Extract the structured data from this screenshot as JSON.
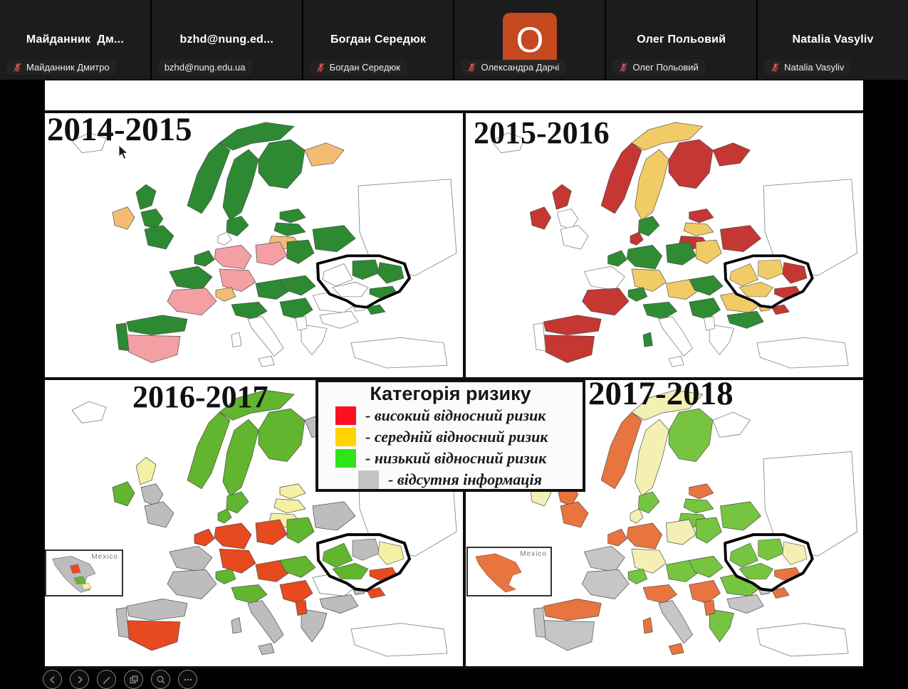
{
  "meeting": {
    "participants": [
      {
        "tile_name": "Майданник  Дм...",
        "chip_label": "Майданник Дмитро",
        "muted": true,
        "avatar": null
      },
      {
        "tile_name": "bzhd@nung.ed...",
        "chip_label": "bzhd@nung.edu.ua",
        "muted": false,
        "avatar": null
      },
      {
        "tile_name": "Богдан Середюк",
        "chip_label": "Богдан Середюк",
        "muted": true,
        "avatar": null
      },
      {
        "tile_name": "",
        "chip_label": "Олександра Дарчі",
        "muted": true,
        "avatar": {
          "initial": "O",
          "color": "#C5481F"
        }
      },
      {
        "tile_name": "Олег Польовий",
        "chip_label": "Олег Польовий",
        "muted": true,
        "avatar": null
      },
      {
        "tile_name": "Natalia Vasyliv",
        "chip_label": "Natalia Vasyliv",
        "muted": true,
        "avatar": null
      }
    ],
    "muted_mic_color": "#E04B59"
  },
  "slide": {
    "legend": {
      "title": "Категорія ризику",
      "items": [
        {
          "color": "#FB1020",
          "label": "- високий відносний ризик"
        },
        {
          "color": "#FFD400",
          "label": "- середній відносний ризик"
        },
        {
          "color": "#2EE415",
          "label": "- низький відносний ризик"
        },
        {
          "color": "#C4C4C4",
          "label": "- відсутня інформація"
        }
      ]
    },
    "maps": [
      {
        "title": "2014-2015",
        "palette": {
          "h": "#F49FA4",
          "m": "#F3BC74",
          "l": "#2D8A32",
          "n": "#C4C4C4",
          "w": "#FFFFFF"
        },
        "cells": {
          "A": "l",
          "B": "l",
          "C": "l",
          "D": "l",
          "E": "l",
          "G": "m",
          "H": "l",
          "I": "l",
          "J": "m",
          "K": "l",
          "L": "l",
          "M": "l",
          "N": "m",
          "O": "w",
          "P": "l",
          "Q": "h",
          "R": "h",
          "S": "h",
          "T": "l",
          "U": "l",
          "V": "l",
          "W": "l",
          "X": "h",
          "AF": "m",
          "Y": "l",
          "Z": "h",
          "AA": "l",
          "AB": "l",
          "AG": "l",
          "AI": "l",
          "u2": "l",
          "u3": "l",
          "u5": "l"
        },
        "inset": null
      },
      {
        "title": "2015-2016",
        "palette": {
          "h": "#C53732",
          "m": "#F1CB66",
          "l": "#2F8C33",
          "n": "#C4C4C4",
          "w": "#FFFFFF"
        },
        "cells": {
          "A": "h",
          "B": "m",
          "C": "m",
          "D": "l",
          "E": "h",
          "G": "h",
          "H": "h",
          "I": "m",
          "J": "h",
          "K": "h",
          "N": "h",
          "O": "h",
          "P": "l",
          "Q": "l",
          "R": "m",
          "S": "l",
          "T": "m",
          "U": "h",
          "V": "m",
          "X": "h",
          "AF": "l",
          "Y": "h",
          "Z": "h",
          "AB": "l",
          "AE": "l",
          "AG": "l",
          "AH": "m",
          "AI": "l",
          "AJ": "l",
          "AN": "m",
          "u1": "m",
          "u2": "m",
          "u3": "h",
          "u4": "m",
          "u5": "h"
        },
        "inset": null
      },
      {
        "title": "2016-2017",
        "palette": {
          "h": "#E64A1E",
          "m": "#F4F0A4",
          "l": "#61B52F",
          "n": "#BDBDBD",
          "w": "#FFFFFF"
        },
        "cells": {
          "A": "l",
          "B": "l",
          "C": "l",
          "D": "l",
          "E": "l",
          "G": "n",
          "H": "m",
          "I": "m",
          "J": "m",
          "K": "m",
          "L": "n",
          "M": "n",
          "N": "l",
          "O": "l",
          "P": "h",
          "Q": "h",
          "R": "h",
          "S": "h",
          "T": "l",
          "U": "n",
          "V": "h",
          "W": "n",
          "X": "n",
          "AF": "l",
          "Y": "n",
          "Z": "h",
          "AA": "n",
          "AB": "l",
          "AC": "n",
          "AD": "n",
          "AE": "n",
          "AG": "l",
          "AI": "h",
          "AJ": "n",
          "AK": "n",
          "AL": "h",
          "AN": "n",
          "u1": "l",
          "u2": "n",
          "u3": "m",
          "u4": "l",
          "u5": "h"
        },
        "inset": {
          "label": "Mexico",
          "style": "patchwork"
        }
      },
      {
        "title": "2017-2018",
        "palette": {
          "h": "#E8743F",
          "m": "#F4F0B4",
          "l": "#77C440",
          "n": "#C6C6C6",
          "w": "#FFFFFF"
        },
        "cells": {
          "A": "h",
          "B": "m",
          "C": "m",
          "D": "l",
          "E": "l",
          "H": "h",
          "I": "l",
          "J": "l",
          "K": "m",
          "L": "h",
          "M": "h",
          "N": "m",
          "O": "m",
          "P": "h",
          "Q": "h",
          "R": "m",
          "S": "m",
          "T": "l",
          "U": "l",
          "V": "l",
          "W": "n",
          "X": "n",
          "AF": "l",
          "Y": "h",
          "Z": "n",
          "AA": "n",
          "AB": "h",
          "AC": "n",
          "AD": "h",
          "AE": "h",
          "AG": "l",
          "AH": "l",
          "AI": "h",
          "AJ": "n",
          "AK": "l",
          "AL": "h",
          "AN": "n",
          "u1": "l",
          "u2": "l",
          "u3": "m",
          "u4": "l",
          "u5": "h"
        },
        "inset": {
          "label": "Mexico",
          "style": "solid"
        }
      }
    ]
  },
  "toolbar": {
    "buttons": [
      "previous-slide",
      "next-slide",
      "pen-tool",
      "see-all-slides",
      "zoom-slide",
      "more-options"
    ]
  }
}
